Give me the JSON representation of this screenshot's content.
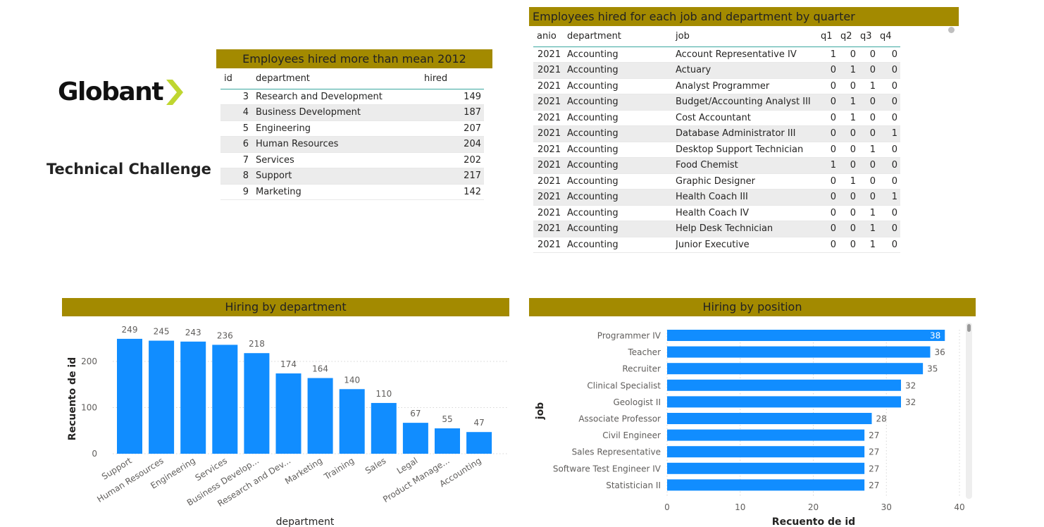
{
  "logo": {
    "text": "Globant",
    "accent_color": "#bfd630"
  },
  "subtitle": "Technical Challenge",
  "band_color": "#a38a00",
  "bar_color": "#118dff",
  "mean_table": {
    "title": "Employees hired more than mean 2012",
    "columns": [
      "id",
      "department",
      "hired"
    ],
    "rows": [
      [
        "3",
        "Research and Development",
        "149"
      ],
      [
        "4",
        "Business Development",
        "187"
      ],
      [
        "5",
        "Engineering",
        "207"
      ],
      [
        "6",
        "Human Resources",
        "204"
      ],
      [
        "7",
        "Services",
        "202"
      ],
      [
        "8",
        "Support",
        "217"
      ],
      [
        "9",
        "Marketing",
        "142"
      ]
    ]
  },
  "quarter_table": {
    "title": "Employees hired for each job and department by quarter",
    "columns": [
      "anio",
      "department",
      "job",
      "q1",
      "q2",
      "q3",
      "q4"
    ],
    "rows": [
      [
        "2021",
        "Accounting",
        "Account Representative IV",
        "1",
        "0",
        "0",
        "0"
      ],
      [
        "2021",
        "Accounting",
        "Actuary",
        "0",
        "1",
        "0",
        "0"
      ],
      [
        "2021",
        "Accounting",
        "Analyst Programmer",
        "0",
        "0",
        "1",
        "0"
      ],
      [
        "2021",
        "Accounting",
        "Budget/Accounting Analyst III",
        "0",
        "1",
        "0",
        "0"
      ],
      [
        "2021",
        "Accounting",
        "Cost Accountant",
        "0",
        "1",
        "0",
        "0"
      ],
      [
        "2021",
        "Accounting",
        "Database Administrator III",
        "0",
        "0",
        "0",
        "1"
      ],
      [
        "2021",
        "Accounting",
        "Desktop Support Technician",
        "0",
        "0",
        "1",
        "0"
      ],
      [
        "2021",
        "Accounting",
        "Food Chemist",
        "1",
        "0",
        "0",
        "0"
      ],
      [
        "2021",
        "Accounting",
        "Graphic Designer",
        "0",
        "1",
        "0",
        "0"
      ],
      [
        "2021",
        "Accounting",
        "Health Coach III",
        "0",
        "0",
        "0",
        "1"
      ],
      [
        "2021",
        "Accounting",
        "Health Coach IV",
        "0",
        "0",
        "1",
        "0"
      ],
      [
        "2021",
        "Accounting",
        "Help Desk Technician",
        "0",
        "0",
        "1",
        "0"
      ],
      [
        "2021",
        "Accounting",
        "Junior Executive",
        "0",
        "0",
        "1",
        "0"
      ]
    ]
  },
  "chart_data": [
    {
      "type": "bar",
      "title": "Hiring by department",
      "xlabel": "department",
      "ylabel": "Recuento de id",
      "categories": [
        "Support",
        "Human Resources",
        "Engineering",
        "Services",
        "Business Develop...",
        "Research and Dev...",
        "Marketing",
        "Training",
        "Sales",
        "Legal",
        "Product Manage...",
        "Accounting"
      ],
      "values": [
        249,
        245,
        243,
        236,
        218,
        174,
        164,
        140,
        110,
        67,
        55,
        47
      ],
      "yticks": [
        0,
        100,
        200
      ],
      "ylim": [
        0,
        270
      ],
      "grid": true
    },
    {
      "type": "bar",
      "orientation": "horizontal",
      "title": "Hiring by position",
      "xlabel": "Recuento de id",
      "ylabel": "job",
      "categories": [
        "Programmer IV",
        "Teacher",
        "Recruiter",
        "Clinical Specialist",
        "Geologist II",
        "Associate Professor",
        "Civil Engineer",
        "Sales Representative",
        "Software Test Engineer IV",
        "Statistician II"
      ],
      "values": [
        38,
        36,
        35,
        32,
        32,
        28,
        27,
        27,
        27,
        27
      ],
      "xticks": [
        0,
        10,
        20,
        30,
        40
      ],
      "xlim": [
        0,
        40
      ],
      "grid": true
    }
  ]
}
